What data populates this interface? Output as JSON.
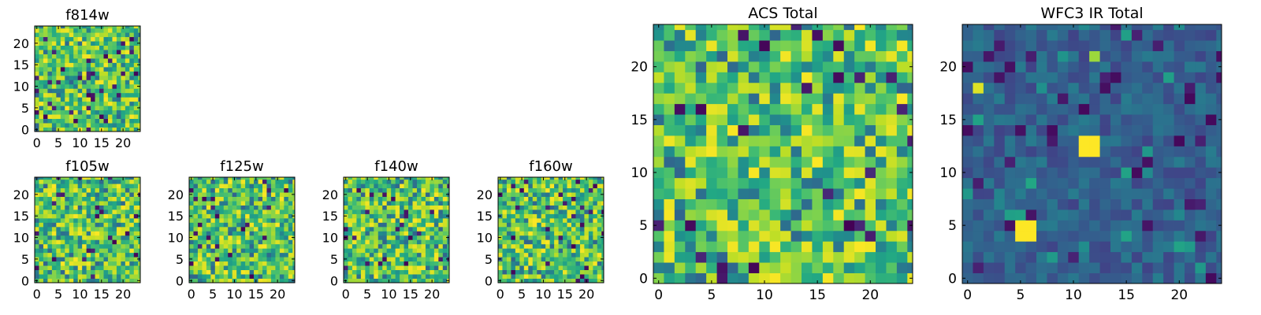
{
  "chart_data": [
    {
      "id": "f814w",
      "type": "heatmap",
      "title": "f814w",
      "grid_size": 25,
      "colormap": "viridis",
      "xticks": [
        "0",
        "5",
        "10",
        "15",
        "20"
      ],
      "yticks": [
        "0",
        "5",
        "10",
        "15",
        "20"
      ],
      "value_range": [
        0,
        1
      ],
      "data_note": "random noise field, mostly green/yellow with sparse dark pixels",
      "seed": 814
    },
    {
      "id": "f105w",
      "type": "heatmap",
      "title": "f105w",
      "grid_size": 25,
      "colormap": "viridis",
      "xticks": [
        "0",
        "5",
        "10",
        "15",
        "20"
      ],
      "yticks": [
        "0",
        "5",
        "10",
        "15",
        "20"
      ],
      "value_range": [
        0,
        1
      ],
      "seed": 105
    },
    {
      "id": "f125w",
      "type": "heatmap",
      "title": "f125w",
      "grid_size": 25,
      "colormap": "viridis",
      "xticks": [
        "0",
        "5",
        "10",
        "15",
        "20"
      ],
      "yticks": [
        "0",
        "5",
        "10",
        "15",
        "20"
      ],
      "value_range": [
        0,
        1
      ],
      "seed": 125
    },
    {
      "id": "f140w",
      "type": "heatmap",
      "title": "f140w",
      "grid_size": 25,
      "colormap": "viridis",
      "xticks": [
        "0",
        "5",
        "10",
        "15",
        "20"
      ],
      "yticks": [
        "0",
        "5",
        "10",
        "15",
        "20"
      ],
      "value_range": [
        0,
        1
      ],
      "seed": 140
    },
    {
      "id": "f160w",
      "type": "heatmap",
      "title": "f160w",
      "grid_size": 25,
      "colormap": "viridis",
      "xticks": [
        "0",
        "5",
        "10",
        "15",
        "20"
      ],
      "yticks": [
        "0",
        "5",
        "10",
        "15",
        "20"
      ],
      "value_range": [
        0,
        1
      ],
      "seed": 160
    },
    {
      "id": "acs_total",
      "type": "heatmap",
      "title": "ACS Total",
      "grid_size": 25,
      "colormap": "viridis",
      "xticks": [
        "0",
        "5",
        "10",
        "15",
        "20"
      ],
      "yticks": [
        "0",
        "5",
        "10",
        "15",
        "20"
      ],
      "value_range": [
        0,
        1
      ],
      "seed": 900
    },
    {
      "id": "wfc3_ir_total",
      "type": "heatmap",
      "title": "WFC3 IR Total",
      "grid_size": 25,
      "colormap": "viridis",
      "xticks": [
        "0",
        "5",
        "10",
        "15",
        "20"
      ],
      "yticks": [
        "0",
        "5",
        "10",
        "15",
        "20"
      ],
      "value_range": [
        0,
        1
      ],
      "seed": 777,
      "bright_sources": [
        {
          "x": 5,
          "y": 4,
          "w": 2,
          "h": 2,
          "value": 1.0
        },
        {
          "x": 11,
          "y": 12,
          "w": 2,
          "h": 2,
          "value": 1.0
        },
        {
          "x": 1,
          "y": 18,
          "w": 1,
          "h": 1,
          "value": 0.95
        },
        {
          "x": 12,
          "y": 21,
          "w": 1,
          "h": 1,
          "value": 0.85
        }
      ]
    }
  ]
}
